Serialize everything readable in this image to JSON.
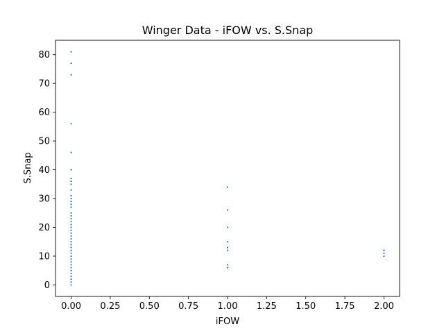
{
  "chart_data": {
    "type": "scatter",
    "title": "Winger Data - iFOW vs. S.Snap",
    "xlabel": "iFOW",
    "ylabel": "S.Snap",
    "xlim": [
      -0.1,
      2.1
    ],
    "ylim": [
      -4,
      85
    ],
    "xticks": [
      "0.00",
      "0.25",
      "0.50",
      "0.75",
      "1.00",
      "1.25",
      "1.50",
      "1.75",
      "2.00"
    ],
    "yticks": [
      "0",
      "10",
      "20",
      "30",
      "40",
      "50",
      "60",
      "70",
      "80"
    ],
    "grid": false,
    "marker_color": "#1f77b4",
    "series": [
      {
        "points": [
          [
            0,
            0
          ],
          [
            0,
            1
          ],
          [
            0,
            2
          ],
          [
            0,
            3
          ],
          [
            0,
            4
          ],
          [
            0,
            5
          ],
          [
            0,
            6
          ],
          [
            0,
            7
          ],
          [
            0,
            8
          ],
          [
            0,
            9
          ],
          [
            0,
            10
          ],
          [
            0,
            11
          ],
          [
            0,
            12
          ],
          [
            0,
            13
          ],
          [
            0,
            14
          ],
          [
            0,
            15
          ],
          [
            0,
            16
          ],
          [
            0,
            17
          ],
          [
            0,
            18
          ],
          [
            0,
            19
          ],
          [
            0,
            20
          ],
          [
            0,
            21
          ],
          [
            0,
            22
          ],
          [
            0,
            23
          ],
          [
            0,
            24
          ],
          [
            0,
            25
          ],
          [
            0,
            27
          ],
          [
            0,
            28
          ],
          [
            0,
            29
          ],
          [
            0,
            30
          ],
          [
            0,
            31
          ],
          [
            0,
            33
          ],
          [
            0,
            35
          ],
          [
            0,
            36
          ],
          [
            0,
            37
          ],
          [
            0,
            40
          ],
          [
            0,
            46
          ],
          [
            0,
            56
          ],
          [
            0,
            73
          ],
          [
            0,
            77
          ],
          [
            0,
            81
          ],
          [
            1,
            6
          ],
          [
            1,
            7
          ],
          [
            1,
            12
          ],
          [
            1,
            13
          ],
          [
            1,
            15
          ],
          [
            1,
            20
          ],
          [
            1,
            26
          ],
          [
            1,
            34
          ],
          [
            2,
            10
          ],
          [
            2,
            11
          ],
          [
            2,
            12
          ]
        ]
      }
    ]
  }
}
